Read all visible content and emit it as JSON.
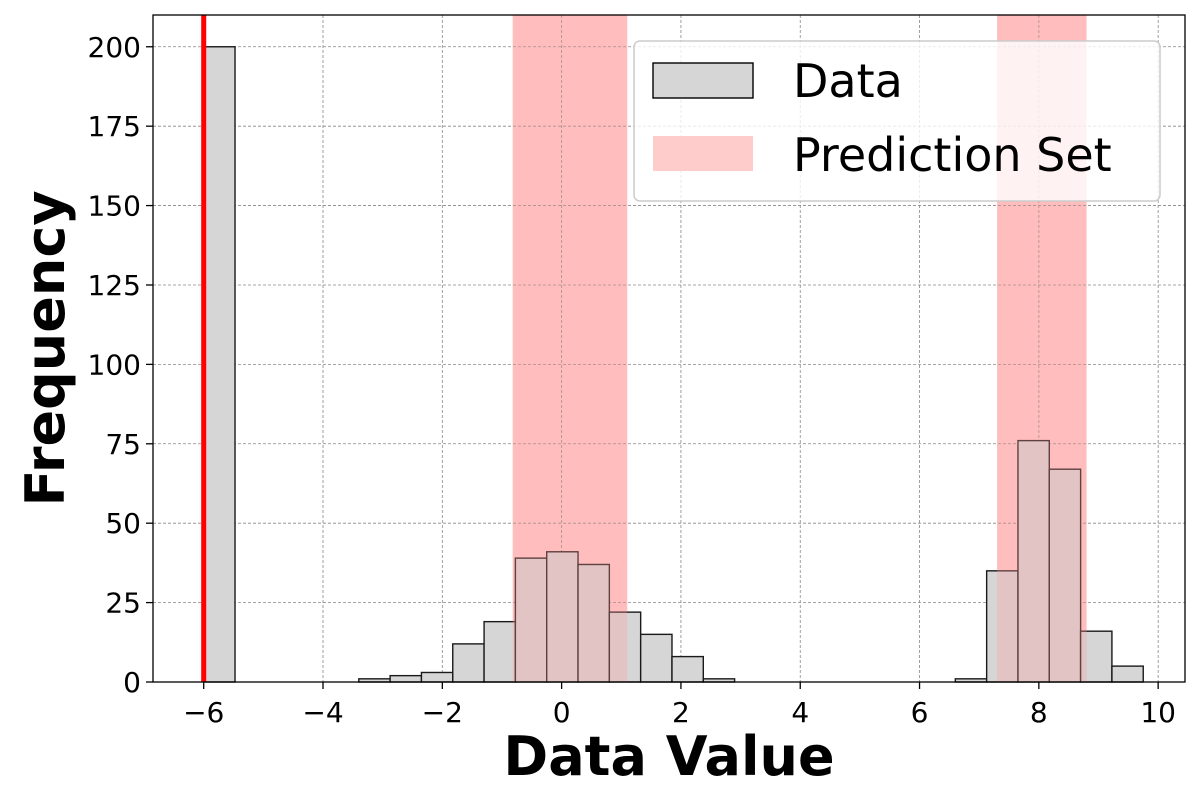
{
  "chart_data": {
    "type": "bar",
    "xlabel": "Data Value",
    "ylabel": "Frequency",
    "xlim": [
      -6.85,
      10.45
    ],
    "ylim": [
      0,
      210
    ],
    "xticks": [
      -6,
      -4,
      -2,
      0,
      2,
      4,
      6,
      8,
      10
    ],
    "xtick_labels": [
      "−6",
      "−4",
      "−2",
      "0",
      "2",
      "4",
      "6",
      "8",
      "10"
    ],
    "yticks": [
      0,
      25,
      50,
      75,
      100,
      125,
      150,
      175,
      200
    ],
    "ytick_labels": [
      "0",
      "25",
      "50",
      "75",
      "100",
      "125",
      "150",
      "175",
      "200"
    ],
    "grid": true,
    "legend": {
      "placement": "upper-right",
      "entries": [
        {
          "label": "Data",
          "color": "#d6d6d6",
          "edge": "#000000"
        },
        {
          "label": "Prediction Set",
          "color": "#ffcccc"
        }
      ]
    },
    "colors": {
      "bar_fill": "#d6d6d6",
      "bar_edge": "#1a1a1a",
      "prediction_set": "#ff9a9a",
      "vertical_line": "#ff0000",
      "grid": "#888888"
    },
    "bin_width": 0.525,
    "bins": [
      {
        "start": -6.0,
        "count": 200
      },
      {
        "start": -3.4,
        "count": 1
      },
      {
        "start": -2.875,
        "count": 2
      },
      {
        "start": -2.35,
        "count": 3
      },
      {
        "start": -1.825,
        "count": 12
      },
      {
        "start": -1.3,
        "count": 19
      },
      {
        "start": -0.775,
        "count": 39
      },
      {
        "start": -0.25,
        "count": 41
      },
      {
        "start": 0.275,
        "count": 37
      },
      {
        "start": 0.8,
        "count": 22
      },
      {
        "start": 1.325,
        "count": 15
      },
      {
        "start": 1.85,
        "count": 8
      },
      {
        "start": 2.375,
        "count": 1
      },
      {
        "start": 6.6,
        "count": 1
      },
      {
        "start": 7.125,
        "count": 35
      },
      {
        "start": 7.65,
        "count": 76
      },
      {
        "start": 8.175,
        "count": 67
      },
      {
        "start": 8.7,
        "count": 16
      },
      {
        "start": 9.225,
        "count": 5
      }
    ],
    "prediction_intervals": [
      [
        -0.82,
        1.1
      ],
      [
        7.3,
        8.8
      ]
    ],
    "vertical_line_x": -6.0
  }
}
